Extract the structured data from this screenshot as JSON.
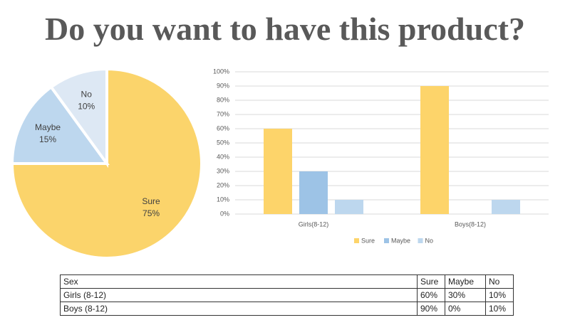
{
  "title": "Do you want to have this product?",
  "chart_data": [
    {
      "type": "pie",
      "categories": [
        "Sure",
        "Maybe",
        "No"
      ],
      "values": [
        75,
        15,
        10
      ],
      "value_labels": [
        "75%",
        "15%",
        "10%"
      ],
      "colors": [
        "#fbd46b",
        "#bdd7ee",
        "#dde8f4"
      ]
    },
    {
      "type": "bar",
      "categories": [
        "Girls(8-12)",
        "Boys(8-12)"
      ],
      "series": [
        {
          "name": "Sure",
          "color": "#fdd46a",
          "values": [
            60,
            90
          ]
        },
        {
          "name": "Maybe",
          "color": "#9dc3e6",
          "values": [
            30,
            0
          ]
        },
        {
          "name": "No",
          "color": "#bdd7ee",
          "values": [
            10,
            10
          ]
        }
      ],
      "ylim": [
        0,
        100
      ],
      "yticks": [
        {
          "value": 0,
          "label": "0%"
        },
        {
          "value": 10,
          "label": "10%"
        },
        {
          "value": 20,
          "label": "20%"
        },
        {
          "value": 30,
          "label": "30%"
        },
        {
          "value": 40,
          "label": "40%"
        },
        {
          "value": 50,
          "label": "50%"
        },
        {
          "value": 60,
          "label": "60%"
        },
        {
          "value": 70,
          "label": "70%"
        },
        {
          "value": 80,
          "label": "80%"
        },
        {
          "value": 90,
          "label": "90%"
        },
        {
          "value": 100,
          "label": "100%"
        }
      ],
      "grid": true,
      "legend": "bottom"
    }
  ],
  "table": {
    "header": [
      "Sex",
      "Sure",
      "Maybe",
      "No"
    ],
    "rows": [
      [
        "Girls (8-12)",
        "60%",
        "30%",
        "10%"
      ],
      [
        "Boys (8-12)",
        "90%",
        "0%",
        "10%"
      ]
    ]
  }
}
